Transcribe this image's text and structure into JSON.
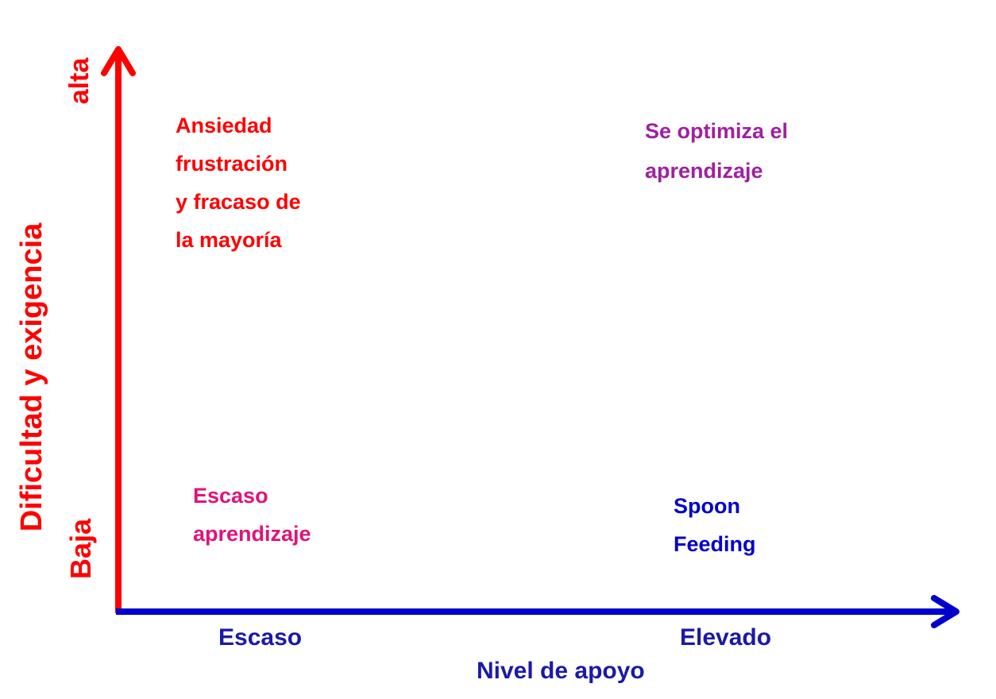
{
  "colors": {
    "y_axis": "#ff0000",
    "x_axis": "#0000cc",
    "anxiety": "#ff0000",
    "optimize": "#a020a0",
    "low_learning": "#e0137a",
    "spoon": "#0000cc",
    "x_label": "#1a1aa8",
    "y_label": "#ff0000"
  },
  "y_axis": {
    "label": "Dificultad  y exigencia",
    "high": "alta",
    "low": "Baja"
  },
  "x_axis": {
    "label": "Nivel de apoyo",
    "low": "Escaso",
    "high": "Elevado"
  },
  "quadrants": {
    "top_left": [
      "Ansiedad",
      "frustración",
      "y fracaso de",
      "la mayoría"
    ],
    "top_right": [
      "Se optimiza el",
      "aprendizaje"
    ],
    "bottom_left": [
      "Escaso",
      "aprendizaje"
    ],
    "bottom_right": [
      "Spoon",
      "Feeding"
    ]
  }
}
